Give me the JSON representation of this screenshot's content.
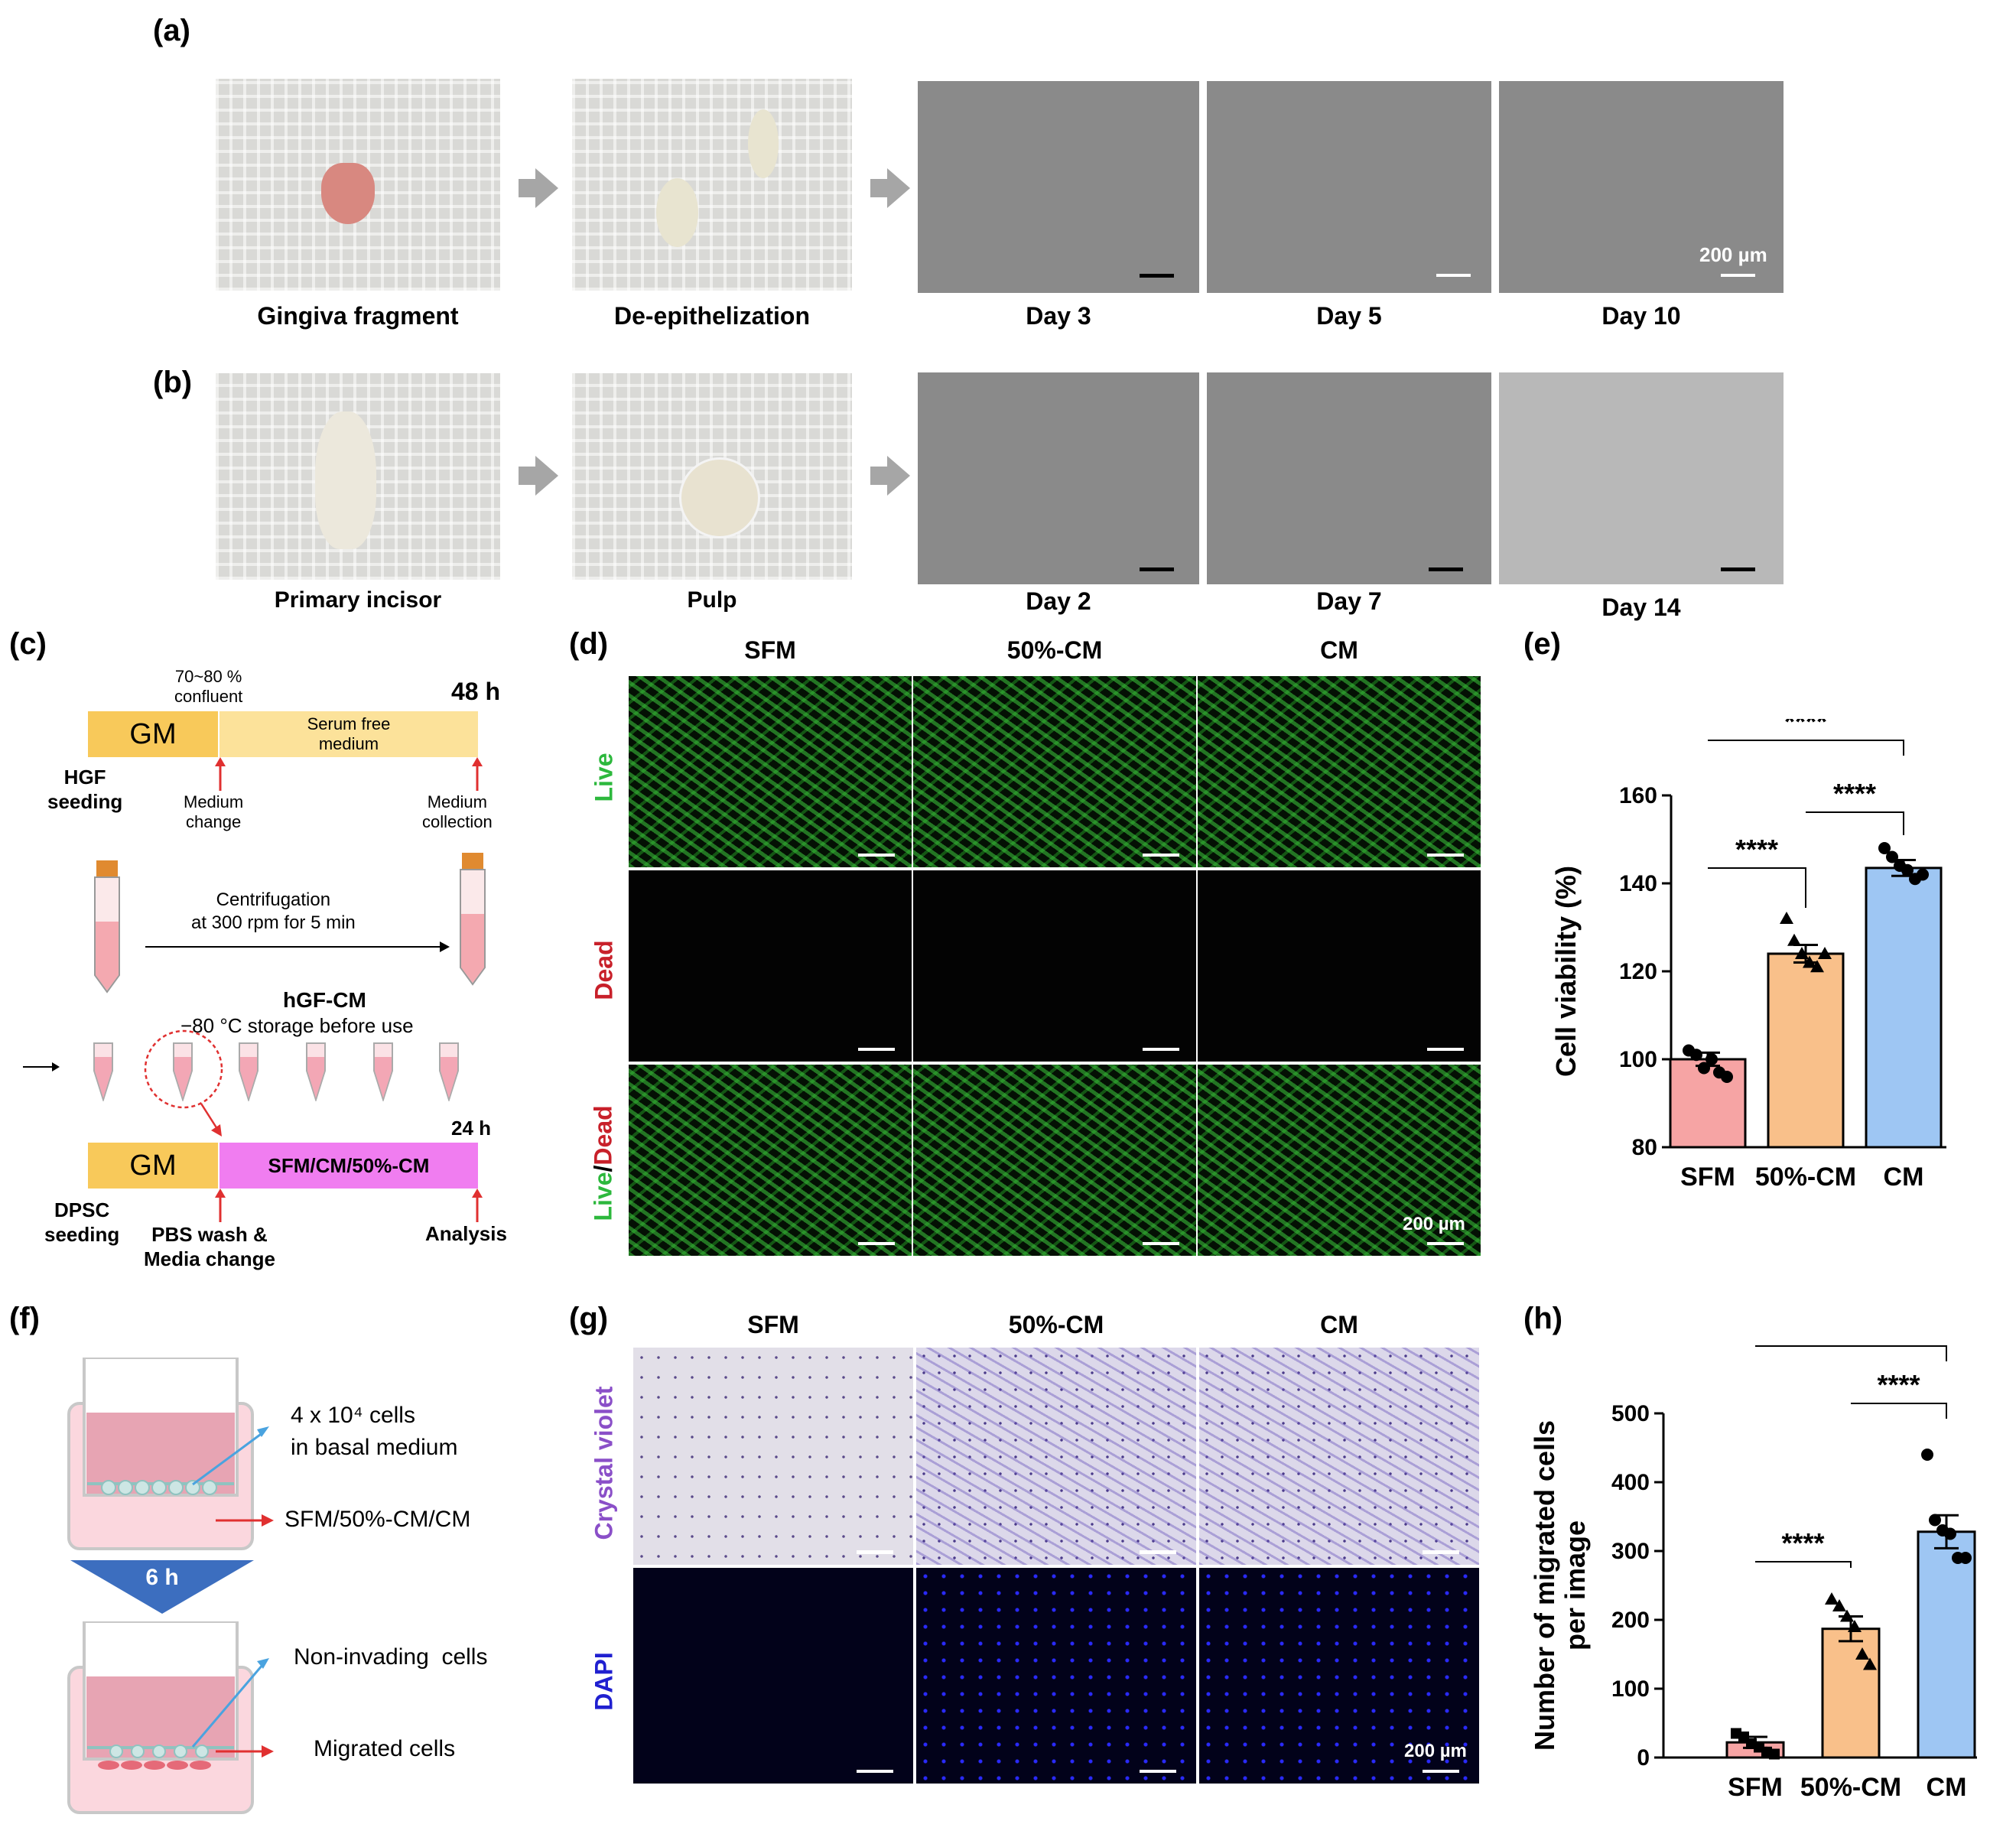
{
  "panels": {
    "a": {
      "label": "(a)",
      "captions": [
        "Gingiva fragment",
        "De-epithelization",
        "Day 3",
        "Day 5",
        "Day 10"
      ],
      "scale": "200 µm"
    },
    "b": {
      "label": "(b)",
      "captions": [
        "Primary  incisor",
        "Pulp",
        "Day 2",
        "Day 7",
        "Day 14"
      ]
    },
    "c": {
      "label": "(c)",
      "confluent": "70~80 %\nconfluent",
      "time48": "48 h",
      "gm": "GM",
      "sfm_box": "Serum free\nmedium",
      "hgf_seeding": "HGF\nseeding",
      "medium_change": "Medium\nchange",
      "medium_collection": "Medium\ncollection",
      "centrifuge": "Centrifugation\nat 300 rpm for 5 min",
      "hgfcm": "hGF-CM",
      "storage": "−80 °C storage before use",
      "time24": "24 h",
      "gm2": "GM",
      "treat": "SFM/CM/50%-CM",
      "dpsc_seeding": "DPSC\nseeding",
      "pbs": "PBS wash &\nMedia change",
      "analysis": "Analysis"
    },
    "d": {
      "label": "(d)",
      "cols": [
        "SFM",
        "50%-CM",
        "CM"
      ],
      "rows": [
        "Live",
        "Dead",
        "Live/Dead"
      ],
      "scale": "200 µm"
    },
    "e": {
      "label": "(e)",
      "sig": "****"
    },
    "f": {
      "label": "(f)",
      "cells": "4 x 10⁴ cells\nin basal medium",
      "bottom": "SFM/50%-CM/CM",
      "time": "6 h",
      "noninv": "Non-invading  cells",
      "migrated": "Migrated cells"
    },
    "g": {
      "label": "(g)",
      "cols": [
        "SFM",
        "50%-CM",
        "CM"
      ],
      "rows": [
        "Crystal violet",
        "DAPI"
      ],
      "scale": "200 µm"
    },
    "h": {
      "label": "(h)",
      "sig": "****"
    }
  },
  "chart_data": [
    {
      "type": "bar",
      "categories": [
        "SFM",
        "50%-CM",
        "CM"
      ],
      "values": [
        100,
        124,
        143.5
      ],
      "errors": [
        1.5,
        2,
        1.8
      ],
      "points": [
        [
          102,
          101,
          98,
          100,
          97,
          96
        ],
        [
          132,
          127,
          124,
          122,
          121,
          124
        ],
        [
          148,
          146,
          144,
          143,
          141,
          142
        ]
      ],
      "ylabel": "Cell viability (%)",
      "ylim": [
        80,
        160
      ],
      "yticks": [
        80,
        100,
        120,
        140,
        160
      ],
      "colors": [
        "#f6a4a4",
        "#f9c08a",
        "#9ec6f3"
      ],
      "significance": [
        "****",
        "****",
        "****"
      ]
    },
    {
      "type": "bar",
      "categories": [
        "SFM",
        "50%-CM",
        "CM"
      ],
      "values": [
        22,
        187,
        328
      ],
      "errors": [
        8,
        18,
        24
      ],
      "points": [
        [
          35,
          30,
          20,
          15,
          8,
          5
        ],
        [
          230,
          220,
          205,
          190,
          150,
          135
        ],
        [
          440,
          345,
          330,
          325,
          290,
          290
        ]
      ],
      "ylabel": "Number of migrated cells\nper image",
      "ylim": [
        0,
        500
      ],
      "yticks": [
        0,
        100,
        200,
        300,
        400,
        500
      ],
      "colors": [
        "#f6a4a4",
        "#f9c08a",
        "#9ec6f3"
      ],
      "significance": [
        "****",
        "****",
        "****"
      ]
    }
  ]
}
